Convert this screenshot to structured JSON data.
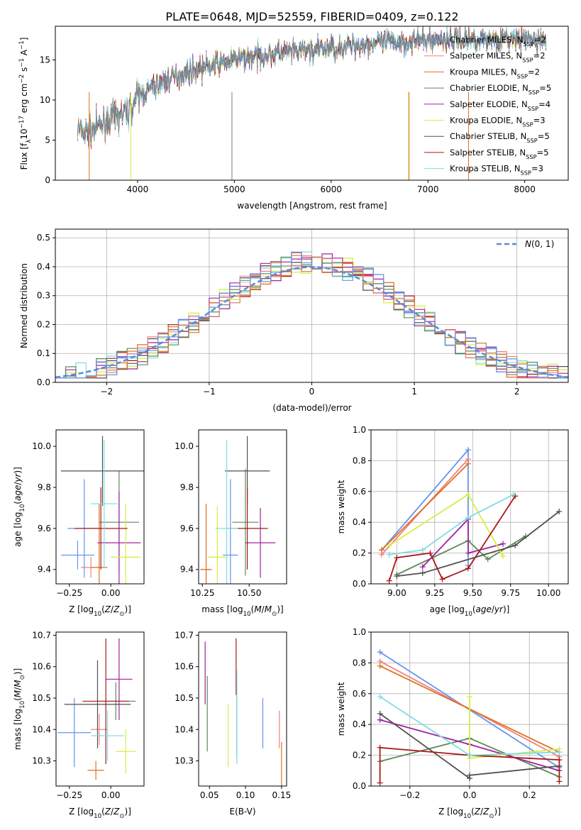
{
  "title": "PLATE=0648, MJD=52559, FIBERID=0409, z=0.122",
  "models": [
    {
      "name": "Chabrier MILES",
      "nssp": "2",
      "color": "#6495ed"
    },
    {
      "name": "Salpeter MILES",
      "nssp": "2",
      "color": "#f08080"
    },
    {
      "name": "Kroupa MILES",
      "nssp": "2",
      "color": "#e07020"
    },
    {
      "name": "Chabrier ELODIE",
      "nssp": "5",
      "color": "#5a8a5a"
    },
    {
      "name": "Salpeter ELODIE",
      "nssp": "4",
      "color": "#a020a0"
    },
    {
      "name": "Kroupa ELODIE",
      "nssp": "3",
      "color": "#d4ee40"
    },
    {
      "name": "Chabrier STELIB",
      "nssp": "5",
      "color": "#505050"
    },
    {
      "name": "Salpeter STELIB",
      "nssp": "5",
      "color": "#aa1818"
    },
    {
      "name": "Kroupa STELIB",
      "nssp": "3",
      "color": "#80dde0"
    }
  ],
  "chart_data": [
    {
      "id": "spectrum",
      "type": "line",
      "xlabel": "wavelength [Angstrom, rest frame]",
      "ylabel": "Flux [f_λ10^-17 erg cm^-2 s^-1 A^-1]",
      "xlim": [
        3150,
        8450
      ],
      "ylim": [
        0,
        19.2
      ],
      "xticks": [
        4000,
        5000,
        6000,
        7000,
        8000
      ],
      "yticks": [
        0,
        5,
        10,
        15
      ],
      "data_x_range": [
        3380,
        8220
      ],
      "continuum": {
        "x": [
          3380,
          3500,
          3700,
          3900,
          4000,
          4300,
          4600,
          5000,
          5400,
          5800,
          6200,
          6600,
          7000,
          7400,
          7800,
          8220
        ],
        "y": [
          6.3,
          6.0,
          7.5,
          8.5,
          10.5,
          12.5,
          13.8,
          15.0,
          15.8,
          16.2,
          16.8,
          17.2,
          17.5,
          17.6,
          17.6,
          17.4
        ]
      },
      "legend_position": "upper-right",
      "grid": false
    },
    {
      "id": "residuals",
      "type": "histogram",
      "xlabel": "(data-model)/error",
      "ylabel": "Normed distribution",
      "xlim": [
        -2.5,
        2.5
      ],
      "ylim": [
        0,
        0.53
      ],
      "xticks": [
        -2,
        -1,
        0,
        1,
        2
      ],
      "yticks": [
        0.0,
        0.1,
        0.2,
        0.3,
        0.4,
        0.5
      ],
      "reference": {
        "name": "N(0,1)",
        "color": "#5a8ad8"
      },
      "legend_position": "upper-right",
      "grid": true
    },
    {
      "id": "z-age",
      "type": "scatter",
      "xlabel": "Z [log10(Z/Z⊙)]",
      "ylabel": "age  [log10(age/yr)]",
      "xlim": [
        -0.33,
        0.2
      ],
      "ylim": [
        9.33,
        10.08
      ],
      "xticks": [
        -0.25,
        0.0
      ],
      "yticks": [
        9.4,
        9.6,
        9.8,
        10.0
      ],
      "points": [
        {
          "model": 0,
          "x": -0.16,
          "y": 9.6,
          "ex": 0.1,
          "ey": 0.24
        },
        {
          "model": 1,
          "x": -0.12,
          "y": 9.41,
          "ex": 0.06,
          "ey": 0.05
        },
        {
          "model": 2,
          "x": -0.07,
          "y": 9.41,
          "ex": 0.05,
          "ey": 0.31
        },
        {
          "model": 3,
          "x": 0.05,
          "y": 9.63,
          "ex": 0.12,
          "ey": 0.25
        },
        {
          "model": 4,
          "x": 0.05,
          "y": 9.53,
          "ex": 0.13,
          "ey": 0.25
        },
        {
          "model": 5,
          "x": 0.09,
          "y": 9.46,
          "ex": 0.09,
          "ey": 0.26
        },
        {
          "model": 6,
          "x": -0.05,
          "y": 9.88,
          "ex": 0.25,
          "ey": 0.17
        },
        {
          "model": 7,
          "x": -0.06,
          "y": 9.6,
          "ex": 0.16,
          "ey": 0.2
        },
        {
          "model": 8,
          "x": -0.04,
          "y": 9.72,
          "ex": 0.08,
          "ey": 0.31
        },
        {
          "model": 0,
          "x": -0.2,
          "y": 9.47,
          "ex": 0.1,
          "ey": 0.07
        }
      ]
    },
    {
      "id": "mass-age",
      "type": "scatter",
      "xlabel": "mass [log10(M/M⊙)]",
      "ylabel": "",
      "xlim": [
        10.23,
        10.7
      ],
      "ylim": [
        9.33,
        10.08
      ],
      "xticks": [
        10.25,
        10.5
      ],
      "yticks": [
        9.4,
        9.6,
        9.8,
        10.0
      ],
      "points": [
        {
          "model": 0,
          "x": 10.4,
          "y": 9.47,
          "ex": 0.04,
          "ey": 0.37
        },
        {
          "model": 1,
          "x": 10.27,
          "y": 9.4,
          "ex": 0.03,
          "ey": 0.05
        },
        {
          "model": 2,
          "x": 10.27,
          "y": 9.4,
          "ex": 0.03,
          "ey": 0.32
        },
        {
          "model": 3,
          "x": 10.48,
          "y": 9.63,
          "ex": 0.07,
          "ey": 0.26
        },
        {
          "model": 4,
          "x": 10.56,
          "y": 9.53,
          "ex": 0.08,
          "ey": 0.17
        },
        {
          "model": 5,
          "x": 10.33,
          "y": 9.46,
          "ex": 0.05,
          "ey": 0.25
        },
        {
          "model": 6,
          "x": 10.49,
          "y": 9.88,
          "ex": 0.12,
          "ey": 0.17
        },
        {
          "model": 7,
          "x": 10.49,
          "y": 9.6,
          "ex": 0.11,
          "ey": 0.2
        },
        {
          "model": 8,
          "x": 10.38,
          "y": 9.6,
          "ex": 0.06,
          "ey": 0.43
        }
      ]
    },
    {
      "id": "age-weight",
      "type": "line",
      "xlabel": "age  [log10(age/yr)]",
      "ylabel": "mass weight",
      "xlim": [
        8.83,
        10.13
      ],
      "ylim": [
        0,
        1
      ],
      "xticks": [
        9.0,
        9.25,
        9.5,
        9.75,
        10.0
      ],
      "yticks": [
        0.0,
        0.2,
        0.4,
        0.6,
        0.8,
        1.0
      ],
      "series": [
        {
          "model": 0,
          "x": [
            8.9,
            9.47,
            9.47
          ],
          "y": [
            0.22,
            0.87,
            0.12
          ]
        },
        {
          "model": 1,
          "x": [
            8.9,
            9.47
          ],
          "y": [
            0.19,
            0.81
          ]
        },
        {
          "model": 2,
          "x": [
            8.9,
            9.47
          ],
          "y": [
            0.22,
            0.78
          ]
        },
        {
          "model": 3,
          "x": [
            9.0,
            9.47,
            9.6,
            9.85
          ],
          "y": [
            0.06,
            0.28,
            0.16,
            0.31
          ]
        },
        {
          "model": 4,
          "x": [
            9.17,
            9.47,
            9.47,
            9.7
          ],
          "y": [
            0.11,
            0.42,
            0.2,
            0.26
          ]
        },
        {
          "model": 5,
          "x": [
            8.95,
            9.47,
            9.7
          ],
          "y": [
            0.25,
            0.58,
            0.18
          ]
        },
        {
          "model": 6,
          "x": [
            9.0,
            9.17,
            9.78,
            10.07
          ],
          "y": [
            0.05,
            0.07,
            0.25,
            0.47
          ]
        },
        {
          "model": 7,
          "x": [
            8.95,
            9.0,
            9.22,
            9.3,
            9.47,
            9.78
          ],
          "y": [
            0.02,
            0.17,
            0.2,
            0.03,
            0.1,
            0.57
          ]
        },
        {
          "model": 8,
          "x": [
            8.95,
            9.17,
            9.47,
            9.77
          ],
          "y": [
            0.19,
            0.22,
            0.43,
            0.58
          ]
        }
      ],
      "grid": true
    },
    {
      "id": "z-mass",
      "type": "scatter",
      "xlabel": "Z [log10(Z/Z⊙)]",
      "ylabel": "mass [log10(M/M⊙)]",
      "xlim": [
        -0.33,
        0.2
      ],
      "ylim": [
        10.22,
        10.71
      ],
      "xticks": [
        -0.25,
        0.0
      ],
      "yticks": [
        10.3,
        10.4,
        10.5,
        10.6,
        10.7
      ],
      "points": [
        {
          "model": 0,
          "x": -0.22,
          "y": 10.39,
          "ex": 0.1,
          "ey": 0.11
        },
        {
          "model": 1,
          "x": -0.07,
          "y": 10.4,
          "ex": 0.05,
          "ey": 0.05
        },
        {
          "model": 2,
          "x": -0.09,
          "y": 10.27,
          "ex": 0.05,
          "ey": 0.03
        },
        {
          "model": 3,
          "x": 0.03,
          "y": 10.49,
          "ex": 0.12,
          "ey": 0.06
        },
        {
          "model": 4,
          "x": 0.05,
          "y": 10.56,
          "ex": 0.08,
          "ey": 0.13
        },
        {
          "model": 5,
          "x": 0.09,
          "y": 10.33,
          "ex": 0.06,
          "ey": 0.07
        },
        {
          "model": 6,
          "x": -0.08,
          "y": 10.48,
          "ex": 0.2,
          "ey": 0.14
        },
        {
          "model": 7,
          "x": -0.03,
          "y": 10.49,
          "ex": 0.14,
          "ey": 0.2
        },
        {
          "model": 8,
          "x": -0.02,
          "y": 10.38,
          "ex": 0.1,
          "ey": 0.08
        }
      ]
    },
    {
      "id": "ebv-mass",
      "type": "scatter",
      "xlabel": "E(B-V)",
      "ylabel": "",
      "xlim": [
        0.035,
        0.157
      ],
      "ylim": [
        10.22,
        10.71
      ],
      "xticks": [
        0.05,
        0.1,
        0.15
      ],
      "yticks": [
        10.3,
        10.4,
        10.5,
        10.6,
        10.7
      ],
      "points": [
        {
          "model": 0,
          "x": 0.124,
          "y": 10.42,
          "ex": 0,
          "ey": 0.08
        },
        {
          "model": 1,
          "x": 0.147,
          "y": 10.4,
          "ex": 0,
          "ey": 0.06
        },
        {
          "model": 2,
          "x": 0.15,
          "y": 10.29,
          "ex": 0,
          "ey": 0.07
        },
        {
          "model": 3,
          "x": 0.047,
          "y": 10.45,
          "ex": 0,
          "ey": 0.12
        },
        {
          "model": 4,
          "x": 0.044,
          "y": 10.58,
          "ex": 0,
          "ey": 0.1
        },
        {
          "model": 5,
          "x": 0.076,
          "y": 10.38,
          "ex": 0,
          "ey": 0.1
        },
        {
          "model": 6,
          "x": 0.088,
          "y": 10.45,
          "ex": 0,
          "ey": 0.14
        },
        {
          "model": 7,
          "x": 0.087,
          "y": 10.6,
          "ex": 0,
          "ey": 0.09
        },
        {
          "model": 8,
          "x": 0.088,
          "y": 10.44,
          "ex": 0,
          "ey": 0.15
        }
      ]
    },
    {
      "id": "z-weight",
      "type": "line",
      "xlabel": "Z [log10(Z/Z⊙)]",
      "ylabel": "mass weight",
      "xlim": [
        -0.33,
        0.33
      ],
      "ylim": [
        0,
        1
      ],
      "xticks": [
        -0.2,
        0.0,
        0.2
      ],
      "yticks": [
        0.0,
        0.2,
        0.4,
        0.6,
        0.8,
        1.0
      ],
      "series": [
        {
          "model": 0,
          "x": [
            -0.3,
            0.3
          ],
          "y": [
            0.87,
            0.12
          ]
        },
        {
          "model": 1,
          "x": [
            -0.3,
            0.3
          ],
          "y": [
            0.81,
            0.19
          ]
        },
        {
          "model": 2,
          "x": [
            -0.3,
            0.3
          ],
          "y": [
            0.78,
            0.22
          ]
        },
        {
          "model": 3,
          "x": [
            -0.3,
            0.0,
            0.3
          ],
          "y": [
            0.16,
            0.31,
            0.06
          ]
        },
        {
          "model": 4,
          "x": [
            -0.3,
            0.0,
            0.3
          ],
          "y": [
            0.43,
            0.27,
            0.1
          ]
        },
        {
          "model": 5,
          "x": [
            0.0,
            0.0,
            0.3
          ],
          "y": [
            0.58,
            0.18,
            0.24
          ]
        },
        {
          "model": 6,
          "x": [
            -0.3,
            0.0,
            0.0,
            0.3
          ],
          "y": [
            0.47,
            0.05,
            0.07,
            0.13
          ]
        },
        {
          "model": 7,
          "x": [
            -0.3,
            -0.3,
            0.0,
            0.3,
            0.3
          ],
          "y": [
            0.02,
            0.25,
            0.2,
            0.17,
            0.03
          ]
        },
        {
          "model": 8,
          "x": [
            -0.3,
            0.0,
            0.3
          ],
          "y": [
            0.58,
            0.2,
            0.22
          ]
        }
      ],
      "grid": true
    }
  ]
}
